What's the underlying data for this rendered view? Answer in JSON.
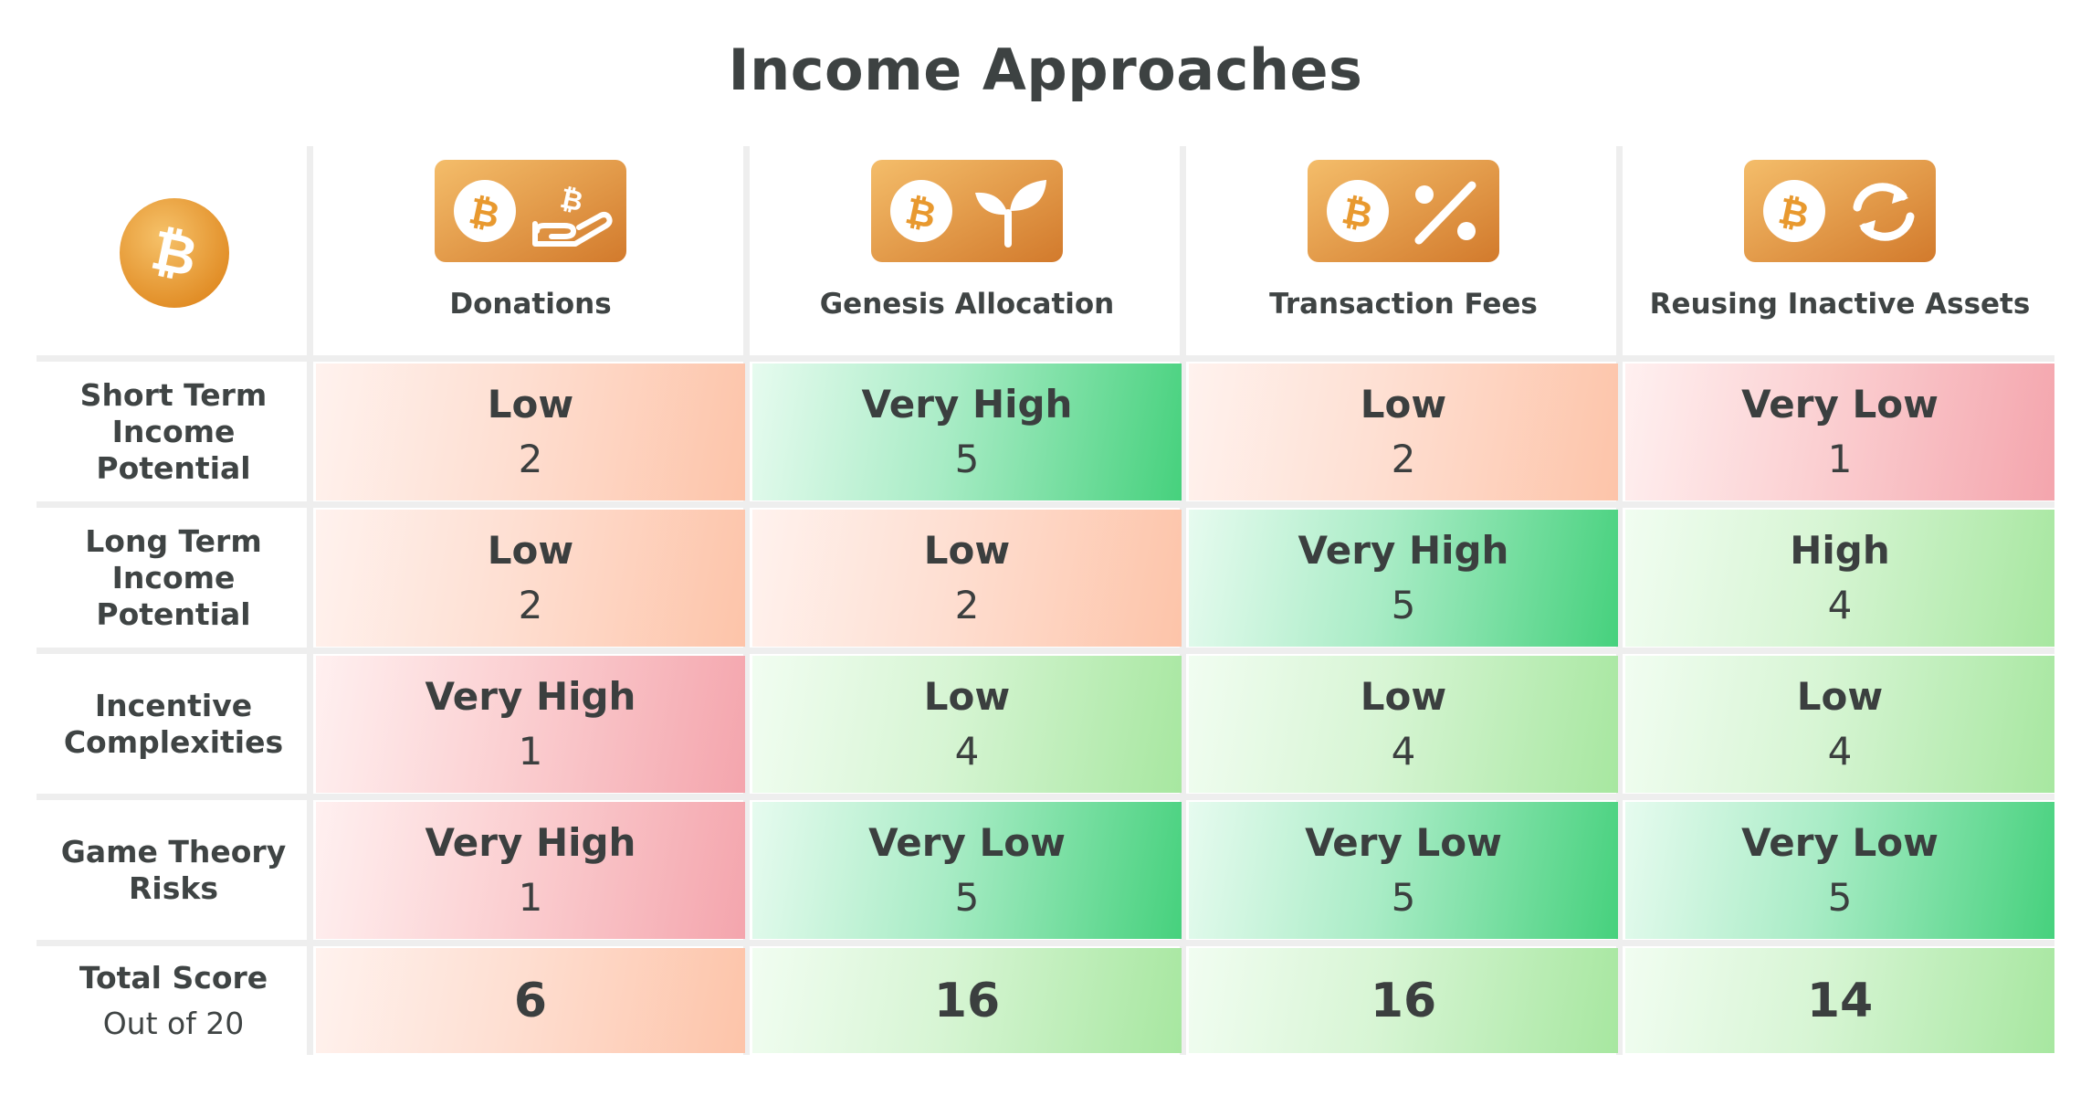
{
  "title": "Income Approaches",
  "colors": {
    "very_bad": "#f4a5ad",
    "bad": "#fdc4a9",
    "good": "#a7e7a0",
    "very_good": "#46d17d",
    "bitcoin_orange": "#e8992f"
  },
  "corner_icon": "bitcoin-coin-icon",
  "columns": [
    {
      "label": "Donations",
      "icon": "hand-bitcoin-icon"
    },
    {
      "label": "Genesis Allocation",
      "icon": "sprout-icon"
    },
    {
      "label": "Transaction Fees",
      "icon": "percent-icon"
    },
    {
      "label": "Reusing Inactive Assets",
      "icon": "refresh-icon"
    }
  ],
  "rows": [
    {
      "label_lines": [
        "Short Term",
        "Income",
        "Potential"
      ]
    },
    {
      "label_lines": [
        "Long Term",
        "Income",
        "Potential"
      ]
    },
    {
      "label_lines": [
        "Incentive",
        "Complexities"
      ]
    },
    {
      "label_lines": [
        "Game Theory",
        "Risks"
      ]
    }
  ],
  "total_row": {
    "label": "Total Score",
    "sublabel": "Out of 20"
  },
  "chart_data": {
    "type": "table",
    "title": "Income Approaches",
    "columns": [
      "Donations",
      "Genesis Allocation",
      "Transaction Fees",
      "Reusing Inactive Assets"
    ],
    "rows": [
      "Short Term Income Potential",
      "Long Term Income Potential",
      "Incentive Complexities",
      "Game Theory Risks"
    ],
    "cells": [
      [
        {
          "rating": "Low",
          "score": "2"
        },
        {
          "rating": "Very High",
          "score": "5"
        },
        {
          "rating": "Low",
          "score": "2"
        },
        {
          "rating": "Very Low",
          "score": "1"
        }
      ],
      [
        {
          "rating": "Low",
          "score": "2"
        },
        {
          "rating": "Low",
          "score": "2"
        },
        {
          "rating": "Very High",
          "score": "5"
        },
        {
          "rating": "High",
          "score": "4"
        }
      ],
      [
        {
          "rating": "Very High",
          "score": "1"
        },
        {
          "rating": "Low",
          "score": "4"
        },
        {
          "rating": "Low",
          "score": "4"
        },
        {
          "rating": "Low",
          "score": "4"
        }
      ],
      [
        {
          "rating": "Very High",
          "score": "1"
        },
        {
          "rating": "Very Low",
          "score": "5"
        },
        {
          "rating": "Very Low",
          "score": "5"
        },
        {
          "rating": "Very Low",
          "score": "5"
        }
      ]
    ],
    "totals": [
      "6",
      "16",
      "16",
      "14"
    ],
    "total_max": 20
  }
}
